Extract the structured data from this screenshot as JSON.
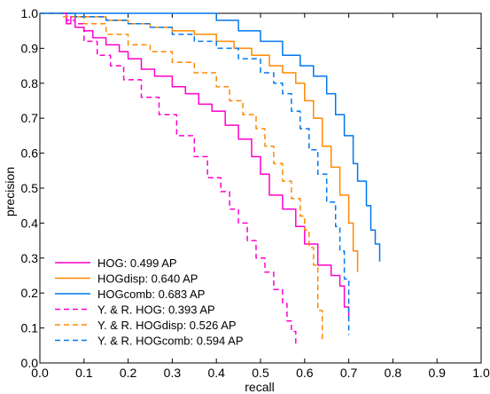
{
  "chart_data": {
    "type": "line",
    "title": "",
    "xlabel": "recall",
    "ylabel": "precision",
    "xlim": [
      0,
      1
    ],
    "ylim": [
      0,
      1
    ],
    "xticks": [
      "0.0",
      "0.1",
      "0.2",
      "0.3",
      "0.4",
      "0.5",
      "0.6",
      "0.7",
      "0.8",
      "0.9",
      "1.0"
    ],
    "yticks": [
      "0.0",
      "0.1",
      "0.2",
      "0.3",
      "0.4",
      "0.5",
      "0.6",
      "0.7",
      "0.8",
      "0.9",
      "1.0"
    ],
    "grid": false,
    "legend_position": "bottom-left",
    "series": [
      {
        "name": "HOG: 0.499 AP",
        "color": "#ff00cc",
        "dash": "solid",
        "points": [
          [
            0.05,
            1.0
          ],
          [
            0.06,
            0.97
          ],
          [
            0.07,
            0.99
          ],
          [
            0.08,
            0.96
          ],
          [
            0.1,
            0.95
          ],
          [
            0.12,
            0.93
          ],
          [
            0.15,
            0.91
          ],
          [
            0.18,
            0.89
          ],
          [
            0.2,
            0.87
          ],
          [
            0.23,
            0.84
          ],
          [
            0.26,
            0.82
          ],
          [
            0.3,
            0.79
          ],
          [
            0.33,
            0.77
          ],
          [
            0.36,
            0.74
          ],
          [
            0.39,
            0.72
          ],
          [
            0.42,
            0.68
          ],
          [
            0.45,
            0.64
          ],
          [
            0.48,
            0.59
          ],
          [
            0.5,
            0.54
          ],
          [
            0.52,
            0.48
          ],
          [
            0.55,
            0.44
          ],
          [
            0.58,
            0.39
          ],
          [
            0.6,
            0.34
          ],
          [
            0.63,
            0.28
          ],
          [
            0.66,
            0.25
          ],
          [
            0.68,
            0.22
          ],
          [
            0.69,
            0.16
          ],
          [
            0.7,
            0.13
          ]
        ]
      },
      {
        "name": "HOGdisp: 0.640 AP",
        "color": "#ff8800",
        "dash": "solid",
        "points": [
          [
            0.0,
            1.0
          ],
          [
            0.08,
            0.99
          ],
          [
            0.15,
            0.98
          ],
          [
            0.2,
            0.97
          ],
          [
            0.25,
            0.96
          ],
          [
            0.3,
            0.95
          ],
          [
            0.35,
            0.94
          ],
          [
            0.4,
            0.92
          ],
          [
            0.44,
            0.9
          ],
          [
            0.48,
            0.88
          ],
          [
            0.52,
            0.85
          ],
          [
            0.55,
            0.83
          ],
          [
            0.58,
            0.8
          ],
          [
            0.6,
            0.75
          ],
          [
            0.62,
            0.7
          ],
          [
            0.64,
            0.62
          ],
          [
            0.66,
            0.56
          ],
          [
            0.68,
            0.48
          ],
          [
            0.7,
            0.4
          ],
          [
            0.71,
            0.32
          ],
          [
            0.72,
            0.26
          ]
        ]
      },
      {
        "name": "HOGcomb: 0.683 AP",
        "color": "#0077ee",
        "dash": "solid",
        "points": [
          [
            0.0,
            1.0
          ],
          [
            0.2,
            1.0
          ],
          [
            0.35,
            1.0
          ],
          [
            0.4,
            0.98
          ],
          [
            0.45,
            0.95
          ],
          [
            0.5,
            0.92
          ],
          [
            0.55,
            0.88
          ],
          [
            0.59,
            0.85
          ],
          [
            0.62,
            0.82
          ],
          [
            0.65,
            0.77
          ],
          [
            0.67,
            0.71
          ],
          [
            0.69,
            0.65
          ],
          [
            0.71,
            0.57
          ],
          [
            0.72,
            0.52
          ],
          [
            0.74,
            0.45
          ],
          [
            0.75,
            0.38
          ],
          [
            0.76,
            0.34
          ],
          [
            0.77,
            0.29
          ]
        ]
      },
      {
        "name": "Y. & R. HOG: 0.393 AP",
        "color": "#ff00cc",
        "dash": "dashed",
        "points": [
          [
            0.05,
            1.0
          ],
          [
            0.06,
            0.98
          ],
          [
            0.08,
            0.97
          ],
          [
            0.1,
            0.92
          ],
          [
            0.13,
            0.88
          ],
          [
            0.16,
            0.85
          ],
          [
            0.19,
            0.81
          ],
          [
            0.23,
            0.76
          ],
          [
            0.27,
            0.71
          ],
          [
            0.31,
            0.65
          ],
          [
            0.35,
            0.59
          ],
          [
            0.38,
            0.53
          ],
          [
            0.41,
            0.49
          ],
          [
            0.43,
            0.44
          ],
          [
            0.45,
            0.4
          ],
          [
            0.47,
            0.35
          ],
          [
            0.49,
            0.3
          ],
          [
            0.51,
            0.26
          ],
          [
            0.53,
            0.21
          ],
          [
            0.55,
            0.17
          ],
          [
            0.56,
            0.12
          ],
          [
            0.57,
            0.09
          ],
          [
            0.58,
            0.05
          ]
        ]
      },
      {
        "name": "Y. & R. HOGdisp: 0.526 AP",
        "color": "#ff8800",
        "dash": "dashed",
        "points": [
          [
            0.0,
            1.0
          ],
          [
            0.05,
            0.99
          ],
          [
            0.1,
            0.97
          ],
          [
            0.15,
            0.94
          ],
          [
            0.2,
            0.91
          ],
          [
            0.25,
            0.89
          ],
          [
            0.3,
            0.86
          ],
          [
            0.35,
            0.83
          ],
          [
            0.4,
            0.79
          ],
          [
            0.43,
            0.75
          ],
          [
            0.46,
            0.71
          ],
          [
            0.49,
            0.67
          ],
          [
            0.51,
            0.62
          ],
          [
            0.53,
            0.57
          ],
          [
            0.55,
            0.52
          ],
          [
            0.57,
            0.47
          ],
          [
            0.59,
            0.42
          ],
          [
            0.6,
            0.38
          ],
          [
            0.61,
            0.33
          ],
          [
            0.62,
            0.28
          ],
          [
            0.63,
            0.24
          ],
          [
            0.63,
            0.15
          ],
          [
            0.64,
            0.06
          ]
        ]
      },
      {
        "name": "Y. & R. HOGcomb: 0.594 AP",
        "color": "#0077ee",
        "dash": "dashed",
        "points": [
          [
            0.0,
            1.0
          ],
          [
            0.08,
            0.99
          ],
          [
            0.15,
            0.98
          ],
          [
            0.2,
            0.97
          ],
          [
            0.25,
            0.96
          ],
          [
            0.3,
            0.94
          ],
          [
            0.35,
            0.92
          ],
          [
            0.4,
            0.9
          ],
          [
            0.45,
            0.87
          ],
          [
            0.5,
            0.83
          ],
          [
            0.53,
            0.8
          ],
          [
            0.55,
            0.77
          ],
          [
            0.57,
            0.72
          ],
          [
            0.59,
            0.67
          ],
          [
            0.61,
            0.61
          ],
          [
            0.63,
            0.54
          ],
          [
            0.65,
            0.46
          ],
          [
            0.67,
            0.39
          ],
          [
            0.68,
            0.32
          ],
          [
            0.69,
            0.24
          ],
          [
            0.7,
            0.15
          ],
          [
            0.7,
            0.08
          ]
        ]
      }
    ]
  }
}
